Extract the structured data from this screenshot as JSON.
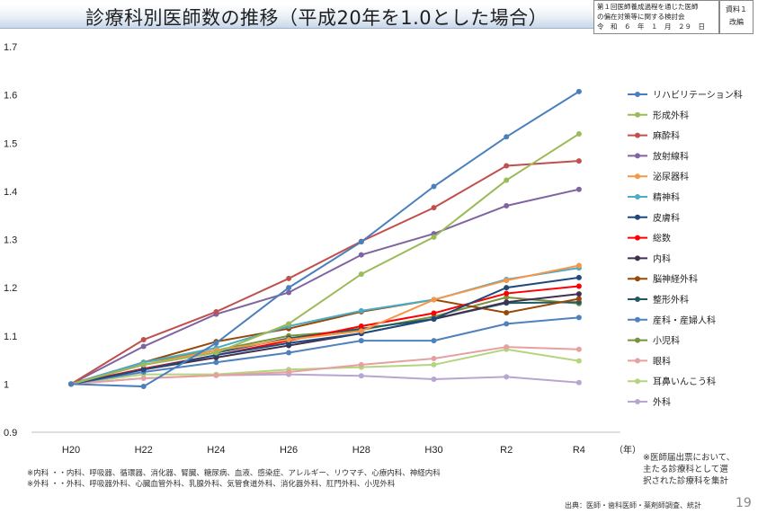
{
  "header": {
    "title": "診療科別医師数の推移（平成20年を1.0とした場合）",
    "meeting_line1": "第１回医師養成過程を通じた医師",
    "meeting_line2": "の偏在対策等に関する検討会",
    "meeting_date": "令　和　６　年　１　月　２９　日",
    "material_line1": "資料１",
    "material_line2": "改編"
  },
  "chart_data": {
    "type": "line",
    "categories": [
      "H20",
      "H22",
      "H24",
      "H26",
      "H28",
      "H30",
      "R2",
      "R4"
    ],
    "xlabel": "（年）",
    "ylabel": "",
    "ylim": [
      0.9,
      1.7
    ],
    "yticks": [
      "0.9",
      "1",
      "1.1",
      "1.2",
      "1.3",
      "1.4",
      "1.5",
      "1.6",
      "1.7"
    ],
    "grid": false,
    "legend_position": "right",
    "series": [
      {
        "name": "リハビリテーション科",
        "color": "#4a7fbe",
        "values": [
          1.0,
          0.995,
          1.085,
          1.2,
          1.295,
          1.41,
          1.513,
          1.607
        ]
      },
      {
        "name": "形成外科",
        "color": "#9bbb59",
        "values": [
          1.0,
          1.04,
          1.065,
          1.125,
          1.228,
          1.305,
          1.423,
          1.519
        ]
      },
      {
        "name": "麻酔科",
        "color": "#c0504d",
        "values": [
          1.0,
          1.092,
          1.15,
          1.219,
          1.296,
          1.366,
          1.453,
          1.463
        ]
      },
      {
        "name": "放射線科",
        "color": "#8064a2",
        "values": [
          1.0,
          1.078,
          1.145,
          1.19,
          1.268,
          1.312,
          1.37,
          1.404
        ]
      },
      {
        "name": "泌尿器科",
        "color": "#f79646",
        "values": [
          1.0,
          1.04,
          1.07,
          1.092,
          1.11,
          1.175,
          1.215,
          1.246
        ]
      },
      {
        "name": "精神科",
        "color": "#4bacc6",
        "values": [
          1.0,
          1.045,
          1.075,
          1.12,
          1.152,
          1.175,
          1.217,
          1.241
        ]
      },
      {
        "name": "皮膚科",
        "color": "#1f497d",
        "values": [
          1.0,
          1.03,
          1.06,
          1.085,
          1.105,
          1.135,
          1.2,
          1.221
        ]
      },
      {
        "name": "総数",
        "color": "#ff0000",
        "values": [
          1.0,
          1.032,
          1.06,
          1.09,
          1.12,
          1.147,
          1.188,
          1.203
        ]
      },
      {
        "name": "内科",
        "color": "#403151",
        "values": [
          1.0,
          1.03,
          1.055,
          1.08,
          1.105,
          1.135,
          1.17,
          1.187
        ]
      },
      {
        "name": "脳神経外科",
        "color": "#984807",
        "values": [
          1.0,
          1.045,
          1.088,
          1.115,
          1.15,
          1.175,
          1.148,
          1.177
        ]
      },
      {
        "name": "整形外科",
        "color": "#215967",
        "values": [
          1.0,
          1.04,
          1.065,
          1.095,
          1.115,
          1.135,
          1.168,
          1.17
        ]
      },
      {
        "name": "産科・産婦人科",
        "color": "#4f81bd",
        "values": [
          1.0,
          1.025,
          1.045,
          1.065,
          1.09,
          1.09,
          1.125,
          1.138
        ]
      },
      {
        "name": "小児科",
        "color": "#76923c",
        "values": [
          1.0,
          1.045,
          1.07,
          1.1,
          1.112,
          1.14,
          1.18,
          1.167
        ]
      },
      {
        "name": "眼科",
        "color": "#e6a0a0",
        "values": [
          1.0,
          1.012,
          1.018,
          1.025,
          1.04,
          1.053,
          1.077,
          1.072
        ]
      },
      {
        "name": "耳鼻いんこう科",
        "color": "#b5d47e",
        "values": [
          1.0,
          1.02,
          1.02,
          1.03,
          1.035,
          1.04,
          1.072,
          1.048
        ]
      },
      {
        "name": "外科",
        "color": "#b7a6d1",
        "values": [
          1.0,
          1.012,
          1.018,
          1.02,
          1.017,
          1.01,
          1.015,
          1.003
        ]
      }
    ]
  },
  "notes": {
    "right_line1": "※医師届出票において、",
    "right_line2": "主たる診療科として選",
    "right_line3": "択された診療科を集計",
    "footnote1": "※内科 ・・内科、呼吸器、循環器、消化器、腎臓、糖尿病、血液、感染症、アレルギー、リウマチ、心療内科、神経内科",
    "footnote2": "※外科 ・・外科、呼吸器外科、心臓血管外科、乳腺外科、気管食道外科、消化器外科、肛門外科、小児外科",
    "source": "出典：医師・歯科医師・薬剤師調査、統計",
    "page_number": "19"
  }
}
